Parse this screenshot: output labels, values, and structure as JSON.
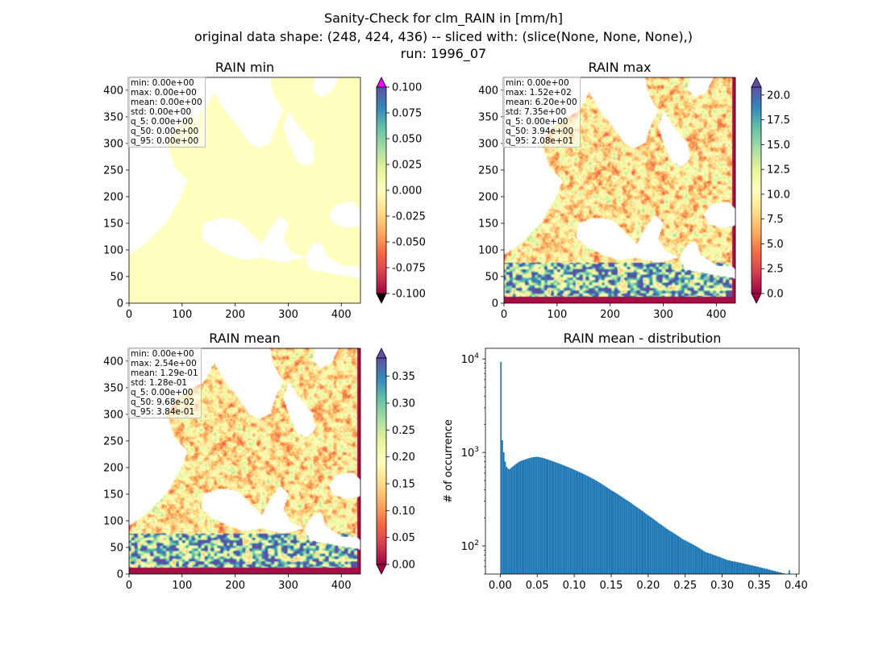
{
  "figure": {
    "title_lines": [
      "Sanity-Check for clm_RAIN in [mm/h]",
      "original data shape: (248, 424, 436) -- sliced with: (slice(None, None, None),)",
      "run: 1996_07"
    ]
  },
  "colormap": {
    "name": "Spectral",
    "stops": [
      "#9e0142",
      "#d53e4f",
      "#f46d43",
      "#fdae61",
      "#fee08b",
      "#ffffbf",
      "#e6f598",
      "#abdda4",
      "#66c2a5",
      "#3288bd",
      "#5e4fa2"
    ],
    "over_color_min_panel": "#ff00ff",
    "under_color_min_panel": "#000000",
    "missing_color": "#ffffff"
  },
  "chart_data": [
    {
      "type": "heatmap",
      "title": "RAIN min",
      "xlim": [
        0,
        436
      ],
      "ylim": [
        0,
        424
      ],
      "xticks": [
        0,
        100,
        200,
        300,
        400
      ],
      "yticks": [
        0,
        50,
        100,
        150,
        200,
        250,
        300,
        350,
        400
      ],
      "colorbar": {
        "vmin": -0.1,
        "vmax": 0.1,
        "ticks": [
          "-0.100",
          "-0.075",
          "-0.050",
          "-0.025",
          "0.000",
          "0.025",
          "0.050",
          "0.075",
          "0.100"
        ],
        "extend": "both"
      },
      "field_value": 0.0,
      "stats": [
        "min: 0.00e+00",
        "max: 0.00e+00",
        "mean: 0.00e+00",
        "std: 0.00e+00",
        "q_5: 0.00e+00",
        "q_50: 0.00e+00",
        "q_95: 0.00e+00"
      ]
    },
    {
      "type": "heatmap",
      "title": "RAIN max",
      "xlim": [
        0,
        436
      ],
      "ylim": [
        0,
        424
      ],
      "xticks": [
        0,
        100,
        200,
        300,
        400
      ],
      "yticks": [
        0,
        50,
        100,
        150,
        200,
        250,
        300,
        350,
        400
      ],
      "colorbar": {
        "vmin": 0.0,
        "vmax": 20.8,
        "ticks": [
          "0.0",
          "2.5",
          "5.0",
          "7.5",
          "10.0",
          "12.5",
          "15.0",
          "17.5",
          "20.0"
        ],
        "extend": "both"
      },
      "field_median": 3.94,
      "stats": [
        "min: 0.00e+00",
        "max: 1.52e+02",
        "mean: 6.20e+00",
        "std: 7.35e+00",
        "q_5: 0.00e+00",
        "q_50: 3.94e+00",
        "q_95: 2.08e+01"
      ]
    },
    {
      "type": "heatmap",
      "title": "RAIN mean",
      "xlim": [
        0,
        436
      ],
      "ylim": [
        0,
        424
      ],
      "xticks": [
        0,
        100,
        200,
        300,
        400
      ],
      "yticks": [
        0,
        50,
        100,
        150,
        200,
        250,
        300,
        350,
        400
      ],
      "colorbar": {
        "vmin": 0.0,
        "vmax": 0.384,
        "ticks": [
          "0.00",
          "0.05",
          "0.10",
          "0.15",
          "0.20",
          "0.25",
          "0.30",
          "0.35"
        ],
        "extend": "both"
      },
      "field_median": 0.0968,
      "stats": [
        "min: 0.00e+00",
        "max: 2.54e+00",
        "mean: 1.29e-01",
        "std: 1.28e-01",
        "q_5: 0.00e+00",
        "q_50: 9.68e-02",
        "q_95: 3.84e-01"
      ]
    },
    {
      "type": "bar",
      "title": "RAIN mean - distribution",
      "xlabel": "",
      "ylabel": "# of occurrence",
      "yscale": "log",
      "xlim": [
        -0.02,
        0.404
      ],
      "ylim": [
        50,
        13000
      ],
      "xticks": [
        "0.00",
        "0.05",
        "0.10",
        "0.15",
        "0.20",
        "0.25",
        "0.30",
        "0.35",
        "0.40"
      ],
      "yticks": [
        100,
        1000,
        10000
      ],
      "bar_color": "#1f77b4",
      "bin_range": [
        0.0,
        0.384
      ],
      "nbins": 200,
      "counts": [
        9300,
        1350,
        1000,
        800,
        700,
        670,
        660,
        680,
        700,
        720,
        740,
        760,
        780,
        800,
        810,
        820,
        830,
        840,
        850,
        860,
        870,
        880,
        885,
        890,
        895,
        900,
        895,
        890,
        885,
        880,
        870,
        860,
        850,
        840,
        830,
        820,
        810,
        800,
        790,
        780,
        770,
        760,
        750,
        740,
        730,
        720,
        710,
        700,
        690,
        680,
        670,
        660,
        650,
        640,
        630,
        620,
        610,
        600,
        590,
        580,
        570,
        560,
        550,
        540,
        530,
        520,
        510,
        500,
        490,
        480,
        470,
        460,
        450,
        440,
        430,
        420,
        410,
        400,
        392,
        384,
        376,
        368,
        360,
        352,
        344,
        336,
        328,
        320,
        313,
        306,
        299,
        292,
        285,
        278,
        271,
        264,
        258,
        252,
        246,
        240,
        234,
        228,
        222,
        216,
        211,
        206,
        201,
        196,
        191,
        186,
        181,
        176,
        172,
        168,
        164,
        160,
        156,
        152,
        148,
        145,
        142,
        139,
        136,
        133,
        130,
        127,
        124,
        121,
        118,
        116,
        114,
        112,
        110,
        108,
        106,
        104,
        102,
        100,
        98,
        96,
        94,
        92,
        90,
        88,
        86,
        85,
        84,
        83,
        82,
        81,
        80,
        79,
        78,
        77,
        76,
        75,
        74,
        73,
        72,
        71,
        70,
        70,
        69,
        69,
        68,
        68,
        67,
        67,
        66,
        66,
        65,
        65,
        64,
        64,
        63,
        63,
        62,
        62,
        61,
        61,
        60,
        60,
        59,
        59,
        58,
        58,
        57,
        57,
        56,
        56,
        55,
        55,
        54,
        54,
        53,
        53,
        52,
        52,
        51,
        51,
        50,
        50,
        50,
        55
      ]
    }
  ]
}
